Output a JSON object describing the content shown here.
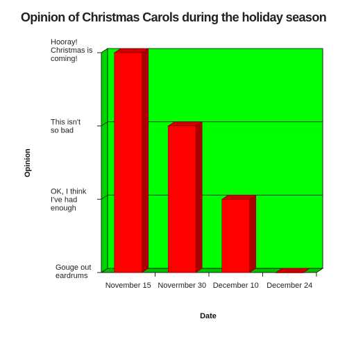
{
  "chart_data": {
    "type": "bar",
    "title": "Opinion of Christmas Carols during the holiday season",
    "xlabel": "Date",
    "ylabel": "Opinion",
    "categories": [
      "November 15",
      "Novermber 30",
      "December 10",
      "December 24"
    ],
    "values": [
      3,
      2,
      1,
      0
    ],
    "ylim": [
      0,
      3
    ],
    "y_tick_labels": [
      "Gouge out eardrums",
      "OK, I think I've had enough",
      "This isn't so bad",
      "Hooray! Christmas is coming!"
    ],
    "grid": true,
    "legend": "none",
    "colors": {
      "plot_background": "#00ff00",
      "bar": "#ff0000",
      "bar_top": "#cc0000",
      "bar_side": "#aa0000",
      "gridline": "#1a3a1a"
    }
  }
}
